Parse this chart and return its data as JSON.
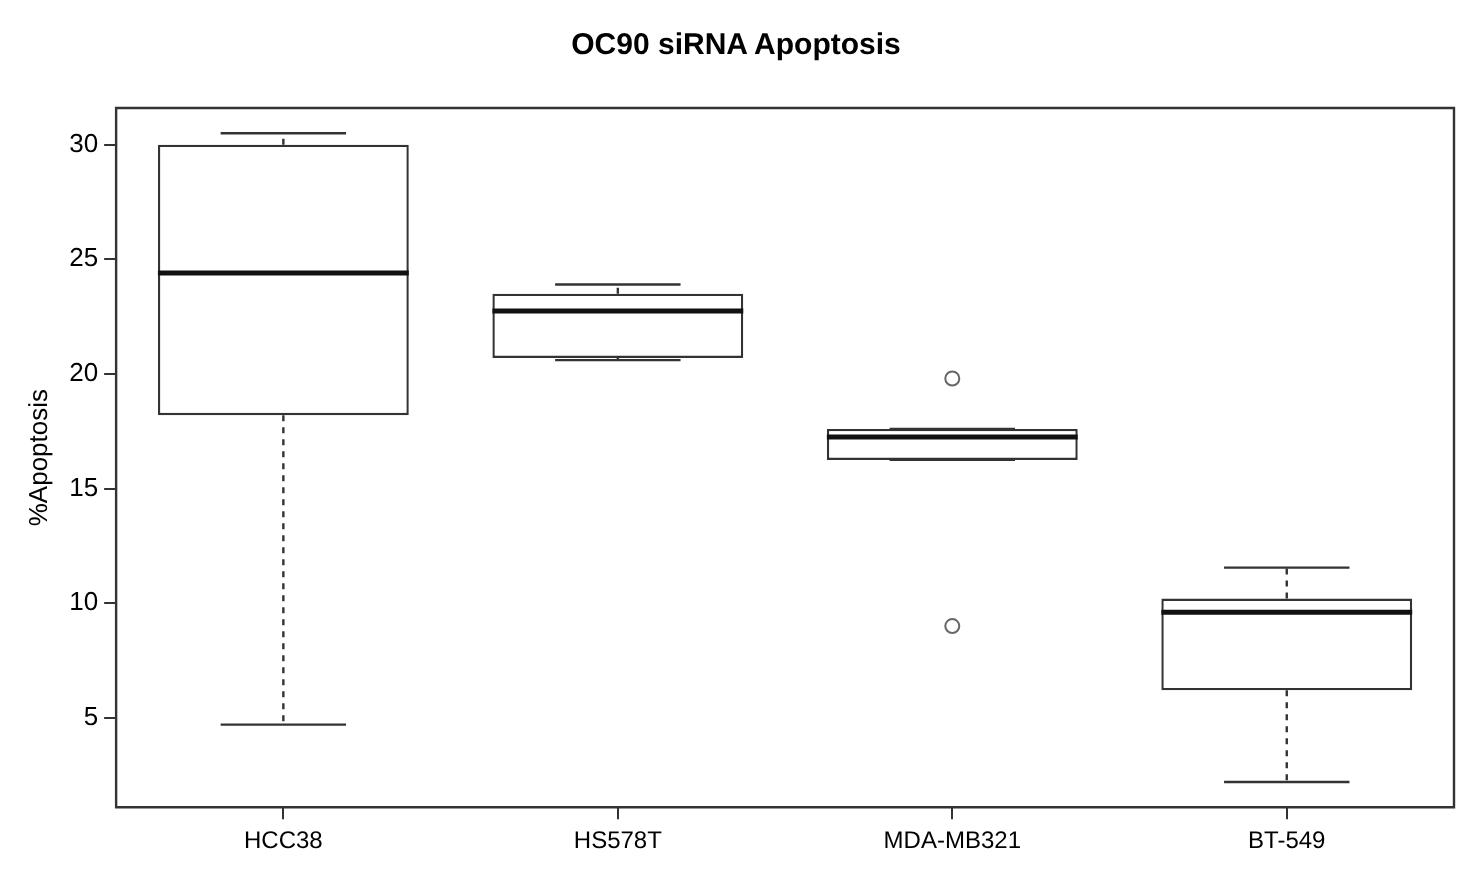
{
  "chart_data": {
    "type": "box",
    "title": "OC90 siRNA Apoptosis",
    "ylabel": "%Apoptosis",
    "categories": [
      "HCC38",
      "HS578T",
      "MDA-MB321",
      "BT-549"
    ],
    "boxes": [
      {
        "low": 4.7,
        "q1": 18.2,
        "median": 24.4,
        "q3": 30,
        "high": 30.5
      },
      {
        "low": 20.6,
        "q1": 20.7,
        "median": 22.75,
        "q3": 23.5,
        "high": 23.9
      },
      {
        "low": 16.25,
        "q1": 16.25,
        "median": 17.25,
        "q3": 17.6,
        "high": 17.6,
        "outliers": [
          19.8,
          9
        ]
      },
      {
        "low": 2.2,
        "q1": 6.2,
        "median": 9.6,
        "q3": 10.2,
        "high": 11.55
      }
    ],
    "ylim": [
      1.1,
      31.6
    ],
    "yticks": [
      5,
      10,
      15,
      20,
      25,
      30
    ],
    "grid": false
  }
}
